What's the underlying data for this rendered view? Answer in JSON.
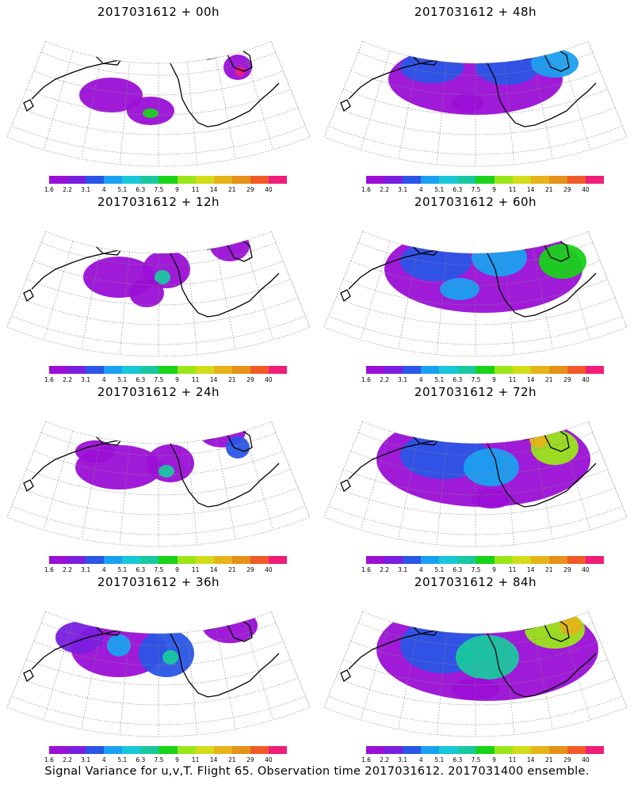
{
  "panels": [
    {
      "title": "2017031612 + 00h",
      "level": 0
    },
    {
      "title": "2017031612 + 48h",
      "level": 4
    },
    {
      "title": "2017031612 + 12h",
      "level": 1
    },
    {
      "title": "2017031612 + 60h",
      "level": 5
    },
    {
      "title": "2017031612 + 24h",
      "level": 2
    },
    {
      "title": "2017031612 + 72h",
      "level": 6
    },
    {
      "title": "2017031612 + 36h",
      "level": 3
    },
    {
      "title": "2017031612 + 84h",
      "level": 7
    }
  ],
  "colorbar": {
    "colors": [
      "#9b0fd6",
      "#7a1ee0",
      "#2a55e6",
      "#1aa0f0",
      "#18c8d8",
      "#19c8a0",
      "#19d219",
      "#9be619",
      "#d2dc19",
      "#e6b419",
      "#e69119",
      "#f05a28",
      "#f01e78"
    ],
    "ticks": [
      "1.6",
      "2.2",
      "3.1",
      "4",
      "5.1",
      "6.3",
      "7.5",
      "9",
      "11",
      "14",
      "21",
      "29",
      "40"
    ]
  },
  "footer": "Signal Variance for u,v,T. Flight 65. Observation time 2017031612. 2017031400 ensemble."
}
